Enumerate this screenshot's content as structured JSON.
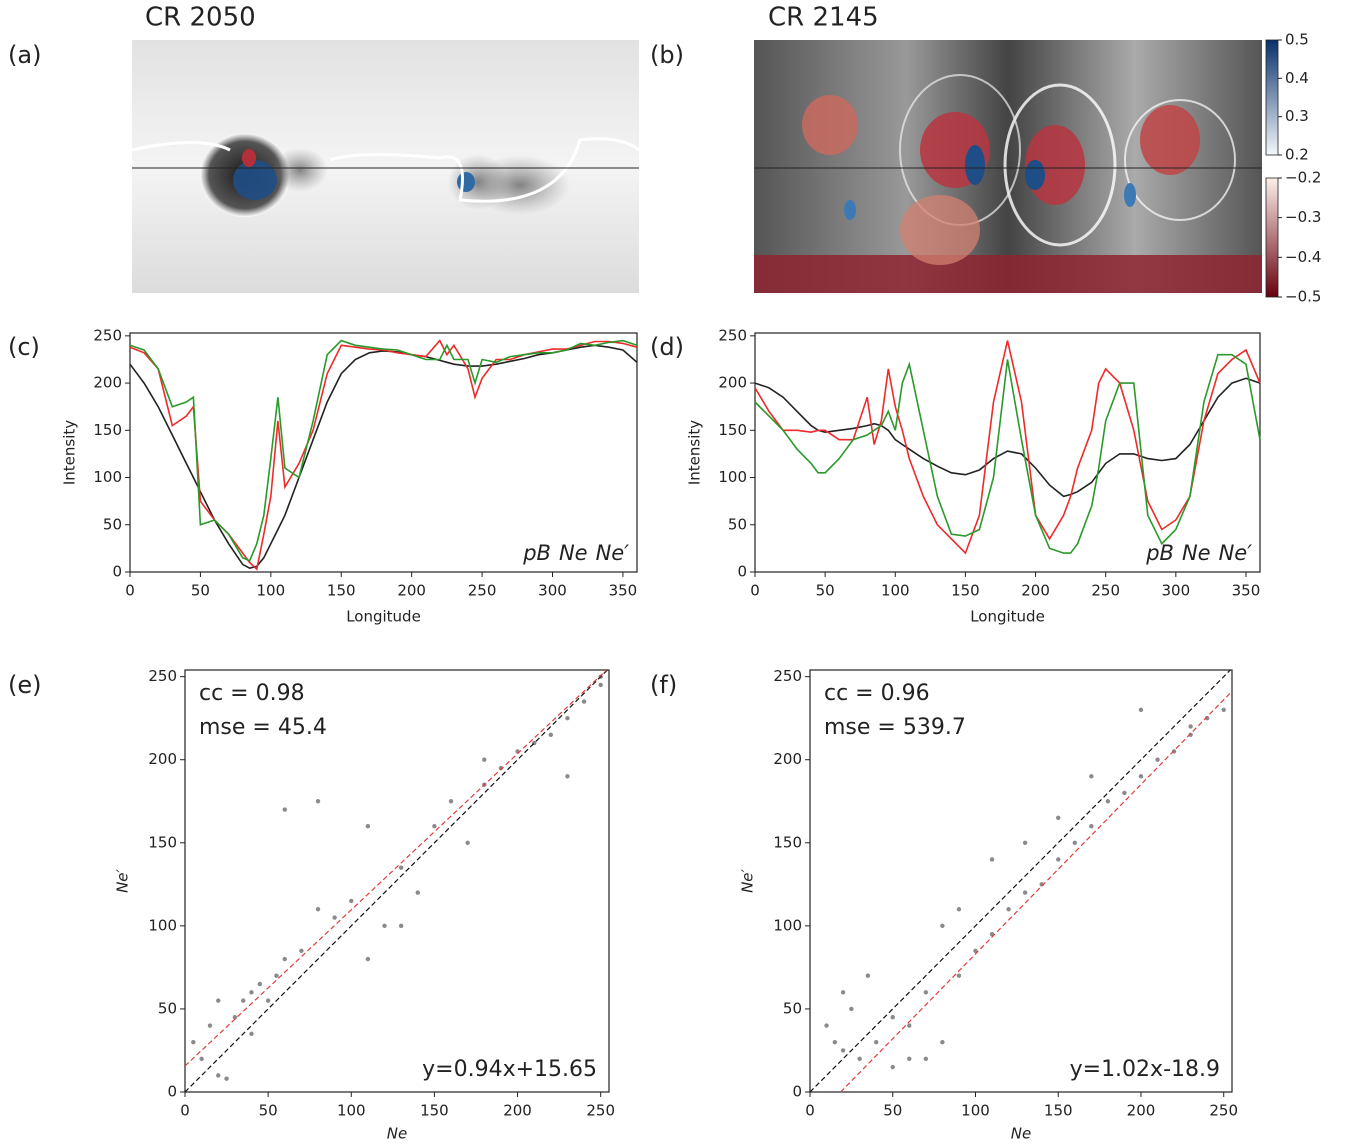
{
  "chart_data": [
    {
      "type": "image",
      "panel_label": "(a)",
      "title": "CR 2050"
    },
    {
      "type": "image",
      "panel_label": "(b)",
      "title": "CR 2145",
      "colorbars": [
        {
          "lim": [
            0.2,
            0.5
          ],
          "ticks": [
            0.5,
            0.4,
            0.3,
            0.2
          ],
          "colors": [
            "#f4f8fc",
            "#08306b"
          ]
        },
        {
          "lim": [
            -0.5,
            -0.2
          ],
          "ticks": [
            {
              "value": -0.2,
              "label": "−0.2"
            },
            {
              "value": -0.3,
              "label": "−0.3"
            },
            {
              "value": -0.4,
              "label": "−0.4"
            },
            {
              "value": -0.5,
              "label": "−0.5"
            }
          ],
          "colors": [
            "#67000d",
            "#fdf0ea"
          ]
        }
      ]
    },
    {
      "type": "line",
      "panel_label": "(c)",
      "xlabel": "Longitude",
      "ylabel": "Intensity",
      "xlim": [
        0,
        360
      ],
      "ylim": [
        0,
        253
      ],
      "xticks": [
        0,
        50,
        100,
        150,
        200,
        250,
        300,
        350
      ],
      "yticks": [
        0,
        50,
        100,
        150,
        200,
        250
      ],
      "x": [
        0,
        10,
        20,
        30,
        40,
        45,
        50,
        60,
        70,
        80,
        85,
        90,
        95,
        100,
        105,
        110,
        120,
        130,
        140,
        150,
        160,
        170,
        180,
        190,
        200,
        210,
        220,
        225,
        230,
        240,
        245,
        250,
        260,
        270,
        280,
        290,
        300,
        310,
        320,
        330,
        340,
        350,
        360
      ],
      "series": [
        {
          "name": "pB",
          "color": "#222222",
          "values": [
            220,
            200,
            175,
            145,
            115,
            100,
            85,
            55,
            30,
            8,
            4,
            6,
            15,
            30,
            45,
            60,
            100,
            140,
            180,
            210,
            225,
            232,
            234,
            233,
            230,
            228,
            224,
            222,
            220,
            218,
            218,
            218,
            220,
            223,
            226,
            230,
            232,
            235,
            238,
            240,
            238,
            235,
            222
          ]
        },
        {
          "name": "Ne",
          "color": "#ee2a2a",
          "values": [
            238,
            232,
            215,
            155,
            165,
            175,
            75,
            55,
            40,
            20,
            10,
            3,
            40,
            80,
            160,
            90,
            115,
            150,
            210,
            240,
            238,
            236,
            235,
            232,
            230,
            228,
            245,
            230,
            240,
            215,
            185,
            205,
            225,
            225,
            230,
            233,
            236,
            236,
            240,
            244,
            244,
            242,
            238
          ]
        },
        {
          "name": "Ne′",
          "color": "#2a9a2a",
          "values": [
            240,
            235,
            215,
            175,
            180,
            185,
            50,
            55,
            40,
            15,
            12,
            30,
            60,
            120,
            185,
            110,
            100,
            160,
            230,
            245,
            240,
            238,
            236,
            235,
            230,
            225,
            225,
            240,
            225,
            225,
            200,
            225,
            222,
            228,
            230,
            232,
            232,
            235,
            242,
            240,
            243,
            245,
            240
          ]
        }
      ]
    },
    {
      "type": "line",
      "panel_label": "(d)",
      "xlabel": "Longitude",
      "ylabel": "Intensity",
      "xlim": [
        0,
        360
      ],
      "ylim": [
        0,
        253
      ],
      "xticks": [
        0,
        50,
        100,
        150,
        200,
        250,
        300,
        350
      ],
      "yticks": [
        0,
        50,
        100,
        150,
        200,
        250
      ],
      "x": [
        0,
        10,
        20,
        30,
        40,
        45,
        50,
        60,
        70,
        80,
        85,
        90,
        95,
        100,
        105,
        110,
        120,
        130,
        140,
        150,
        160,
        170,
        180,
        190,
        200,
        210,
        220,
        225,
        230,
        240,
        245,
        250,
        260,
        270,
        280,
        290,
        300,
        310,
        320,
        330,
        340,
        350,
        360
      ],
      "series": [
        {
          "name": "pB",
          "color": "#222222",
          "values": [
            200,
            195,
            185,
            170,
            155,
            150,
            148,
            150,
            152,
            155,
            157,
            155,
            150,
            140,
            135,
            130,
            120,
            112,
            105,
            103,
            108,
            120,
            128,
            125,
            110,
            92,
            80,
            82,
            85,
            95,
            105,
            115,
            125,
            125,
            120,
            118,
            120,
            135,
            160,
            185,
            200,
            205,
            200
          ]
        },
        {
          "name": "Ne",
          "color": "#ee2a2a",
          "values": [
            195,
            170,
            150,
            150,
            148,
            150,
            150,
            140,
            140,
            185,
            135,
            160,
            215,
            175,
            150,
            120,
            80,
            50,
            35,
            20,
            60,
            180,
            245,
            180,
            60,
            35,
            60,
            80,
            110,
            150,
            200,
            215,
            200,
            150,
            75,
            45,
            55,
            80,
            160,
            210,
            225,
            235,
            200
          ]
        },
        {
          "name": "Ne′",
          "color": "#2a9a2a",
          "values": [
            180,
            165,
            150,
            130,
            115,
            105,
            105,
            120,
            140,
            145,
            150,
            155,
            170,
            150,
            200,
            220,
            150,
            80,
            40,
            38,
            45,
            100,
            225,
            140,
            60,
            25,
            20,
            20,
            30,
            70,
            110,
            160,
            200,
            200,
            60,
            30,
            45,
            80,
            180,
            230,
            230,
            220,
            140
          ]
        }
      ]
    },
    {
      "type": "scatter",
      "panel_label": "(e)",
      "xlabel": "Ne",
      "ylabel": "Ne′",
      "cc": "cc = 0.98",
      "mse": "mse = 45.4",
      "xlim": [
        0,
        255
      ],
      "ylim": [
        0,
        254
      ],
      "xticks": [
        0,
        50,
        100,
        150,
        200,
        250
      ],
      "yticks": [
        0,
        50,
        100,
        150,
        200,
        250
      ],
      "color": "#8a8a8a",
      "fit": {
        "label": "y=0.94x+15.65",
        "slope": 0.94,
        "intercept": 15.65,
        "color": "#e33b3b"
      },
      "x": [
        5,
        10,
        15,
        20,
        25,
        30,
        35,
        40,
        45,
        50,
        55,
        60,
        70,
        80,
        90,
        100,
        110,
        120,
        130,
        140,
        150,
        160,
        170,
        180,
        190,
        200,
        210,
        220,
        230,
        240,
        250,
        60,
        80,
        110,
        130,
        20,
        40,
        180,
        230,
        250
      ],
      "y": [
        30,
        20,
        40,
        10,
        8,
        45,
        55,
        60,
        65,
        55,
        70,
        80,
        85,
        110,
        105,
        115,
        80,
        100,
        135,
        120,
        160,
        175,
        150,
        185,
        195,
        205,
        210,
        215,
        225,
        235,
        245,
        170,
        175,
        160,
        100,
        55,
        35,
        200,
        190,
        250
      ]
    },
    {
      "type": "scatter",
      "panel_label": "(f)",
      "xlabel": "Ne",
      "ylabel": "Ne′",
      "cc": "cc = 0.96",
      "mse": "mse = 539.7",
      "xlim": [
        0,
        255
      ],
      "ylim": [
        0,
        254
      ],
      "xticks": [
        0,
        50,
        100,
        150,
        200,
        250
      ],
      "yticks": [
        0,
        50,
        100,
        150,
        200,
        250
      ],
      "color": "#8a8a8a",
      "fit": {
        "label": "y=1.02x-18.9",
        "slope": 1.02,
        "intercept": -18.9,
        "color": "#e33b3b"
      },
      "x": [
        10,
        15,
        20,
        25,
        30,
        40,
        50,
        60,
        70,
        80,
        90,
        100,
        110,
        120,
        130,
        140,
        150,
        160,
        170,
        180,
        190,
        200,
        210,
        220,
        230,
        240,
        250,
        20,
        35,
        50,
        70,
        90,
        110,
        130,
        150,
        170,
        200,
        230,
        60,
        80
      ],
      "y": [
        40,
        30,
        25,
        50,
        20,
        30,
        45,
        40,
        20,
        30,
        70,
        85,
        95,
        110,
        120,
        125,
        140,
        150,
        160,
        175,
        180,
        190,
        200,
        205,
        215,
        225,
        230,
        60,
        70,
        15,
        60,
        110,
        140,
        150,
        165,
        190,
        230,
        220,
        20,
        100
      ]
    }
  ]
}
